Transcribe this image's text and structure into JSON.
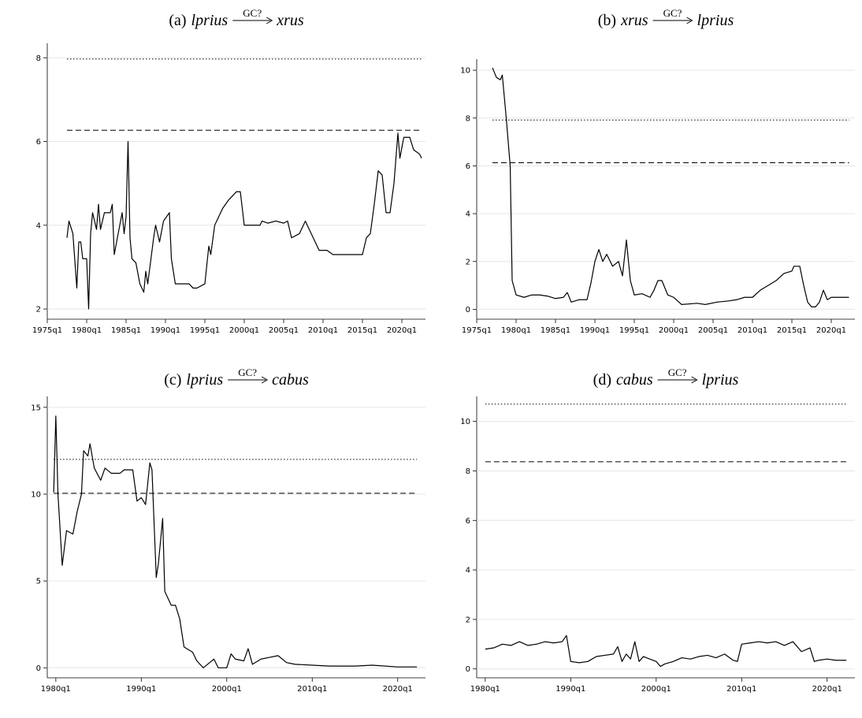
{
  "chart_data": [
    {
      "type": "line",
      "label": "(a)",
      "cause": "lprius",
      "arrow_label": "GC?",
      "effect": "xrus",
      "x": [
        "1977q3",
        "1977q4",
        "1978q2",
        "1978q4",
        "1979q1",
        "1979q2",
        "1979q3",
        "1980q1",
        "1980q2",
        "1980q3",
        "1980q4",
        "1981q2",
        "1981q3",
        "1981q4",
        "1982q2",
        "1983q1",
        "1983q2",
        "1983q3",
        "1984q1",
        "1984q3",
        "1984q4",
        "1985q1",
        "1985q2",
        "1985q3",
        "1985q4",
        "1986q2",
        "1986q4",
        "1987q2",
        "1987q3",
        "1987q4",
        "1988q3",
        "1988q4",
        "1989q2",
        "1989q4",
        "1990q3",
        "1990q4",
        "1991q2",
        "1992q1",
        "1993q1",
        "1993q3",
        "1994q1",
        "1995q1",
        "1995q3",
        "1995q4",
        "1996q2",
        "1997q2",
        "1998q1",
        "1999q1",
        "1999q3",
        "2000q1",
        "2001q1",
        "2002q1",
        "2002q2",
        "2003q1",
        "2004q1",
        "2005q1",
        "2005q3",
        "2006q1",
        "2007q1",
        "2007q4",
        "2008q3",
        "2009q3",
        "2010q3",
        "2011q2",
        "2012q1",
        "2013q1",
        "2014q1",
        "2015q1",
        "2015q3",
        "2016q1",
        "2016q3",
        "2017q1",
        "2017q3",
        "2018q1",
        "2018q3",
        "2019q1",
        "2019q3",
        "2019q4",
        "2020q2",
        "2021q1",
        "2021q3",
        "2022q2",
        "2022q3"
      ],
      "series": [
        {
          "color": "#000000",
          "values": [
            3.7,
            4.1,
            3.8,
            2.5,
            3.6,
            3.6,
            3.2,
            3.2,
            2.0,
            3.8,
            4.3,
            3.9,
            4.5,
            3.9,
            4.3,
            4.3,
            4.5,
            3.3,
            3.8,
            4.3,
            3.8,
            4.2,
            6.0,
            3.7,
            3.2,
            3.1,
            2.6,
            2.4,
            2.9,
            2.6,
            3.7,
            4.0,
            3.6,
            4.1,
            4.3,
            3.2,
            2.6,
            2.6,
            2.6,
            2.5,
            2.5,
            2.6,
            3.5,
            3.3,
            4.0,
            4.4,
            4.6,
            4.8,
            4.8,
            4.0,
            4.0,
            4.0,
            4.1,
            4.05,
            4.1,
            4.05,
            4.1,
            3.7,
            3.8,
            4.1,
            3.8,
            3.4,
            3.4,
            3.3,
            3.3,
            3.3,
            3.3,
            3.3,
            3.7,
            3.8,
            4.5,
            5.3,
            5.2,
            4.3,
            4.3,
            5.0,
            6.2,
            5.6,
            6.1,
            6.1,
            5.8,
            5.7,
            5.6
          ]
        }
      ],
      "hlines": [
        {
          "value": 7.97,
          "style": "dotted"
        },
        {
          "value": 6.27,
          "style": "dashed"
        }
      ],
      "xlim": [
        "1975q1",
        "2023q1"
      ],
      "xticks": [
        "1975q1",
        "1980q1",
        "1985q1",
        "1990q1",
        "1995q1",
        "2000q1",
        "2005q1",
        "2010q1",
        "2015q1",
        "2020q1"
      ],
      "ylim": [
        1.85,
        8.25
      ],
      "yticks": [
        2,
        4,
        6,
        8
      ],
      "grid": true
    },
    {
      "type": "line",
      "label": "(b)",
      "cause": "xrus",
      "arrow_label": "GC?",
      "effect": "lprius",
      "x": [
        "1977q1",
        "1977q3",
        "1978q1",
        "1978q2",
        "1978q4",
        "1979q2",
        "1979q3",
        "1980q1",
        "1981q1",
        "1982q1",
        "1983q1",
        "1984q1",
        "1985q1",
        "1986q1",
        "1986q3",
        "1987q1",
        "1988q1",
        "1989q1",
        "1989q3",
        "1990q1",
        "1990q3",
        "1991q1",
        "1991q3",
        "1992q2",
        "1993q1",
        "1993q3",
        "1994q1",
        "1994q3",
        "1995q1",
        "1996q1",
        "1997q1",
        "1997q3",
        "1998q1",
        "1998q3",
        "1999q2",
        "2000q1",
        "2001q1",
        "2003q1",
        "2004q1",
        "2005q3",
        "2007q1",
        "2008q1",
        "2009q1",
        "2010q1",
        "2011q1",
        "2012q1",
        "2013q1",
        "2014q1",
        "2015q1",
        "2015q2",
        "2016q1",
        "2016q3",
        "2017q1",
        "2017q3",
        "2018q1",
        "2018q3",
        "2019q1",
        "2019q3",
        "2020q1",
        "2021q1",
        "2022q2"
      ],
      "series": [
        {
          "color": "#000000",
          "values": [
            10.1,
            9.7,
            9.6,
            9.8,
            8.0,
            6.0,
            1.2,
            0.6,
            0.5,
            0.6,
            0.6,
            0.55,
            0.45,
            0.5,
            0.7,
            0.3,
            0.4,
            0.4,
            1.1,
            2.0,
            2.5,
            2.0,
            2.3,
            1.8,
            2.0,
            1.4,
            2.9,
            1.2,
            0.6,
            0.65,
            0.5,
            0.8,
            1.2,
            1.2,
            0.6,
            0.5,
            0.2,
            0.25,
            0.2,
            0.3,
            0.35,
            0.4,
            0.5,
            0.5,
            0.8,
            1.0,
            1.2,
            1.5,
            1.6,
            1.8,
            1.8,
            1.0,
            0.3,
            0.1,
            0.1,
            0.3,
            0.8,
            0.4,
            0.5,
            0.5,
            0.5
          ]
        }
      ],
      "hlines": [
        {
          "value": 7.92,
          "style": "dotted"
        },
        {
          "value": 6.13,
          "style": "dashed"
        }
      ],
      "xlim": [
        "1975q1",
        "2023q1"
      ],
      "xticks": [
        "1975q1",
        "1980q1",
        "1985q1",
        "1990q1",
        "1995q1",
        "2000q1",
        "2005q1",
        "2010q1",
        "2015q1",
        "2020q1"
      ],
      "ylim": [
        -0.25,
        10.3
      ],
      "yticks": [
        0,
        2,
        4,
        6,
        8,
        10
      ],
      "grid": true
    },
    {
      "type": "line",
      "label": "(c)",
      "cause": "lprius",
      "arrow_label": "GC?",
      "effect": "cabus",
      "x": [
        "1979q4",
        "1980q1",
        "1980q2",
        "1980q4",
        "1981q2",
        "1982q1",
        "1982q3",
        "1983q1",
        "1983q2",
        "1983q4",
        "1984q1",
        "1984q3",
        "1985q2",
        "1985q4",
        "1986q3",
        "1987q3",
        "1988q1",
        "1989q1",
        "1989q3",
        "1990q1",
        "1990q3",
        "1991q1",
        "1991q2",
        "1991q4",
        "1992q1",
        "1992q3",
        "1992q4",
        "1993q3",
        "1994q1",
        "1994q3",
        "1995q1",
        "1996q1",
        "1996q3",
        "1997q2",
        "1998q1",
        "1998q3",
        "1999q1",
        "2000q1",
        "2000q3",
        "2001q1",
        "2002q1",
        "2002q3",
        "2003q1",
        "2004q1",
        "2005q1",
        "2006q1",
        "2007q1",
        "2008q1",
        "2010q1",
        "2012q1",
        "2015q1",
        "2017q1",
        "2020q1",
        "2022q2"
      ],
      "series": [
        {
          "color": "#000000",
          "values": [
            10.1,
            14.5,
            10.0,
            5.9,
            7.9,
            7.7,
            9.0,
            10.0,
            12.5,
            12.2,
            12.9,
            11.5,
            10.8,
            11.5,
            11.2,
            11.2,
            11.4,
            11.4,
            9.6,
            9.8,
            9.4,
            11.8,
            11.4,
            5.2,
            6.0,
            8.6,
            4.4,
            3.6,
            3.6,
            2.8,
            1.2,
            0.9,
            0.4,
            0.0,
            0.3,
            0.5,
            0.0,
            0.0,
            0.8,
            0.5,
            0.4,
            1.1,
            0.2,
            0.5,
            0.6,
            0.7,
            0.3,
            0.2,
            0.15,
            0.1,
            0.1,
            0.15,
            0.05,
            0.05
          ]
        }
      ],
      "hlines": [
        {
          "value": 12.0,
          "style": "dotted"
        },
        {
          "value": 10.05,
          "style": "dashed"
        }
      ],
      "xlim": [
        "1979q1",
        "2023q2"
      ],
      "xticks": [
        "1980q1",
        "1990q1",
        "2000q1",
        "2010q1",
        "2020q1"
      ],
      "ylim": [
        -0.35,
        15.4
      ],
      "yticks": [
        0,
        5,
        10,
        15
      ],
      "grid": true
    },
    {
      "type": "line",
      "label": "(d)",
      "cause": "cabus",
      "arrow_label": "GC?",
      "effect": "lprius",
      "x": [
        "1980q1",
        "1981q1",
        "1982q1",
        "1983q1",
        "1984q1",
        "1985q1",
        "1986q1",
        "1987q1",
        "1988q1",
        "1989q1",
        "1989q3",
        "1990q1",
        "1991q1",
        "1992q1",
        "1993q1",
        "1994q1",
        "1995q1",
        "1995q3",
        "1996q1",
        "1996q3",
        "1997q1",
        "1997q3",
        "1998q1",
        "1998q3",
        "2000q1",
        "2000q3",
        "2001q1",
        "2002q1",
        "2003q1",
        "2004q1",
        "2005q1",
        "2006q1",
        "2007q1",
        "2008q1",
        "2009q1",
        "2009q3",
        "2010q1",
        "2011q1",
        "2012q1",
        "2013q1",
        "2014q1",
        "2015q1",
        "2016q1",
        "2017q1",
        "2018q1",
        "2018q3",
        "2019q1",
        "2020q1",
        "2021q1",
        "2022q2"
      ],
      "series": [
        {
          "color": "#000000",
          "values": [
            0.8,
            0.85,
            1.0,
            0.95,
            1.1,
            0.95,
            1.0,
            1.1,
            1.05,
            1.1,
            1.35,
            0.3,
            0.25,
            0.3,
            0.5,
            0.55,
            0.6,
            0.9,
            0.3,
            0.6,
            0.4,
            1.1,
            0.3,
            0.5,
            0.3,
            0.1,
            0.2,
            0.3,
            0.45,
            0.4,
            0.5,
            0.55,
            0.45,
            0.6,
            0.35,
            0.3,
            1.0,
            1.05,
            1.1,
            1.05,
            1.1,
            0.95,
            1.1,
            0.7,
            0.85,
            0.3,
            0.35,
            0.4,
            0.35,
            0.35
          ]
        }
      ],
      "hlines": [
        {
          "value": 10.7,
          "style": "dotted"
        },
        {
          "value": 8.37,
          "style": "dashed"
        }
      ],
      "xlim": [
        "1979q1",
        "2023q2"
      ],
      "xticks": [
        "1980q1",
        "1990q1",
        "2000q1",
        "2010q1",
        "2020q1"
      ],
      "ylim": [
        -0.2,
        10.85
      ],
      "yticks": [
        0,
        2,
        4,
        6,
        8,
        10
      ],
      "grid": true
    }
  ]
}
